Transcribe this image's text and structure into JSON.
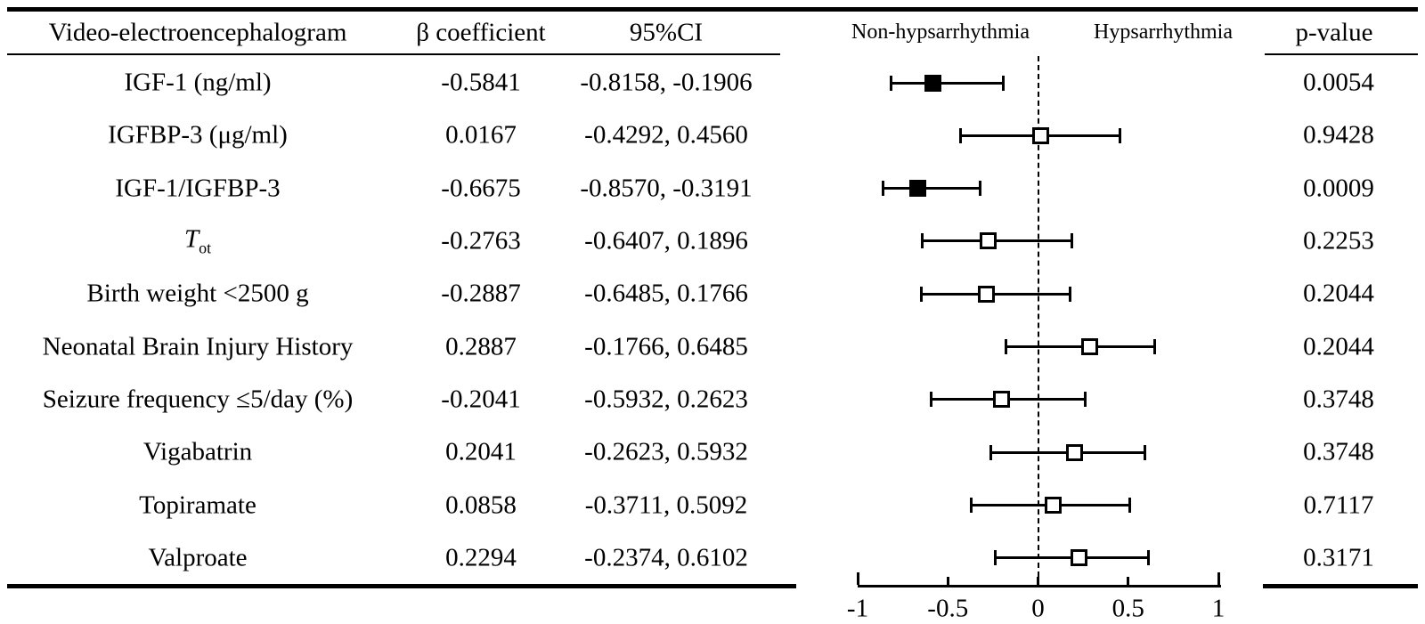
{
  "header": {
    "col_variable": "Video-electroencephalogram",
    "col_beta": "β coefficient",
    "col_ci": "95%CI",
    "col_p": "p-value"
  },
  "colors": {
    "ink": "#000000",
    "background": "#ffffff"
  },
  "chart_data": {
    "type": "forest",
    "orientation": "horizontal",
    "title": "Video-electroencephalogram",
    "xlabel": "",
    "xlim": [
      -1,
      1
    ],
    "x_tick_values": [
      -1,
      -0.5,
      0,
      0.5,
      1
    ],
    "x_tick_labels": [
      "-1",
      "-0.5",
      "0",
      "0.5",
      "1"
    ],
    "zero_reference_line": {
      "value": 0,
      "style": "dashed"
    },
    "group_labels": {
      "left": "Non-hypsarrhythmia",
      "right": "Hypsarrhythmia"
    },
    "rows": [
      {
        "label": "IGF-1 (ng/ml)",
        "beta": -0.5841,
        "beta_text": "-0.5841",
        "ci_low": -0.8158,
        "ci_high": -0.1906,
        "ci_text": "-0.8158, -0.1906",
        "p_text": "0.0054",
        "marker": "filled"
      },
      {
        "label": "IGFBP-3 (μg/ml)",
        "beta": 0.0167,
        "beta_text": "0.0167",
        "ci_low": -0.4292,
        "ci_high": 0.456,
        "ci_text": "-0.4292, 0.4560",
        "p_text": "0.9428",
        "marker": "open"
      },
      {
        "label": "IGF-1/IGFBP-3",
        "beta": -0.6675,
        "beta_text": "-0.6675",
        "ci_low": -0.857,
        "ci_high": -0.3191,
        "ci_text": "-0.8570, -0.3191",
        "p_text": "0.0009",
        "marker": "filled"
      },
      {
        "label": "T",
        "label_sub": "ot",
        "label_italic": true,
        "beta": -0.2763,
        "beta_text": "-0.2763",
        "ci_low": -0.6407,
        "ci_high": 0.1896,
        "ci_text": "-0.6407, 0.1896",
        "p_text": "0.2253",
        "marker": "open"
      },
      {
        "label": "Birth weight <2500 g",
        "beta": -0.2887,
        "beta_text": "-0.2887",
        "ci_low": -0.6485,
        "ci_high": 0.1766,
        "ci_text": "-0.6485, 0.1766",
        "p_text": "0.2044",
        "marker": "open"
      },
      {
        "label": "Neonatal Brain Injury History",
        "beta": 0.2887,
        "beta_text": "0.2887",
        "ci_low": -0.1766,
        "ci_high": 0.6485,
        "ci_text": "-0.1766, 0.6485",
        "p_text": "0.2044",
        "marker": "open"
      },
      {
        "label": "Seizure frequency ≤5/day (%)",
        "beta": -0.2041,
        "beta_text": "-0.2041",
        "ci_low": -0.5932,
        "ci_high": 0.2623,
        "ci_text": "-0.5932, 0.2623",
        "p_text": "0.3748",
        "marker": "open"
      },
      {
        "label": "Vigabatrin",
        "beta": 0.2041,
        "beta_text": "0.2041",
        "ci_low": -0.2623,
        "ci_high": 0.5932,
        "ci_text": "-0.2623, 0.5932",
        "p_text": "0.3748",
        "marker": "open"
      },
      {
        "label": "Topiramate",
        "beta": 0.0858,
        "beta_text": "0.0858",
        "ci_low": -0.3711,
        "ci_high": 0.5092,
        "ci_text": "-0.3711, 0.5092",
        "p_text": "0.7117",
        "marker": "open"
      },
      {
        "label": "Valproate",
        "beta": 0.2294,
        "beta_text": "0.2294",
        "ci_low": -0.2374,
        "ci_high": 0.6102,
        "ci_text": "-0.2374, 0.6102",
        "p_text": "0.3171",
        "marker": "open"
      }
    ]
  }
}
